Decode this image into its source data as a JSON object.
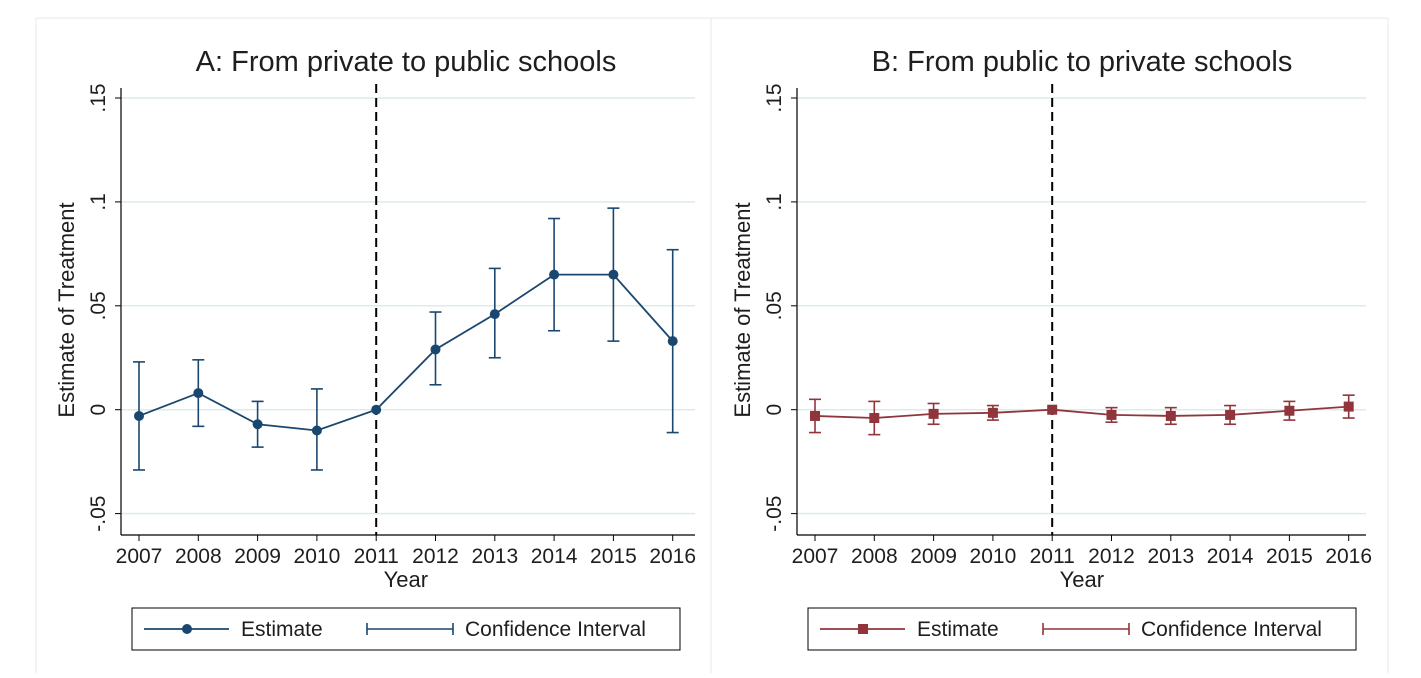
{
  "chart_data": [
    {
      "type": "line",
      "title": "A: From private to public schools",
      "xlabel": "Year",
      "ylabel": "Estimate of Treatment",
      "x": [
        "2007",
        "2008",
        "2009",
        "2010",
        "2011",
        "2012",
        "2013",
        "2014",
        "2015",
        "2016"
      ],
      "yticks": [
        "-.05",
        "0",
        ".05",
        ".1",
        ".15"
      ],
      "ylim": [
        -0.055,
        0.15
      ],
      "grid": true,
      "reference_line": "2011",
      "color": "#1a476f",
      "marker": "circle",
      "series": [
        {
          "name": "Estimate",
          "values": [
            -0.003,
            0.008,
            -0.007,
            -0.01,
            0.0,
            0.029,
            0.046,
            0.065,
            0.065,
            0.033
          ]
        },
        {
          "name": "Confidence Interval",
          "lower": [
            -0.029,
            -0.008,
            -0.018,
            -0.029,
            0.0,
            0.012,
            0.025,
            0.038,
            0.033,
            -0.011
          ],
          "upper": [
            0.023,
            0.024,
            0.004,
            0.01,
            0.0,
            0.047,
            0.068,
            0.092,
            0.097,
            0.077
          ]
        }
      ],
      "legend_position": "bottom"
    },
    {
      "type": "line",
      "title": "B: From public to private schools",
      "xlabel": "Year",
      "ylabel": "Estimate of Treatment",
      "x": [
        "2007",
        "2008",
        "2009",
        "2010",
        "2011",
        "2012",
        "2013",
        "2014",
        "2015",
        "2016"
      ],
      "yticks": [
        "-.05",
        "0",
        ".05",
        ".1",
        ".15"
      ],
      "ylim": [
        -0.055,
        0.15
      ],
      "grid": true,
      "reference_line": "2011",
      "color": "#90353b",
      "marker": "square",
      "series": [
        {
          "name": "Estimate",
          "values": [
            -0.003,
            -0.004,
            -0.002,
            -0.0015,
            0.0,
            -0.0025,
            -0.003,
            -0.0025,
            -0.0005,
            0.0015
          ]
        },
        {
          "name": "Confidence Interval",
          "lower": [
            -0.011,
            -0.012,
            -0.007,
            -0.005,
            0.0,
            -0.006,
            -0.007,
            -0.007,
            -0.005,
            -0.004
          ],
          "upper": [
            0.005,
            0.004,
            0.003,
            0.002,
            0.0,
            0.001,
            0.001,
            0.002,
            0.004,
            0.007
          ]
        }
      ],
      "legend_position": "bottom"
    }
  ]
}
